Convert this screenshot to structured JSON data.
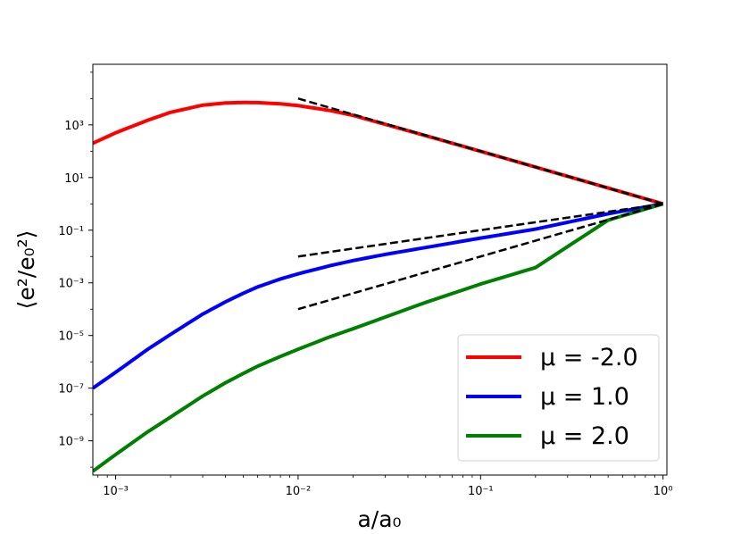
{
  "chart_data": {
    "type": "line",
    "title": "",
    "xlabel": "a/a₀",
    "ylabel": "⟨e²/e₀²⟩",
    "xscale": "log",
    "yscale": "log",
    "xlim": [
      0.00075,
      1.05
    ],
    "ylim": [
      5e-11,
      200000.0
    ],
    "grid": false,
    "legend_position": "lower right",
    "x_ticks": [
      {
        "value": 0.001,
        "label": "10⁻³"
      },
      {
        "value": 0.01,
        "label": "10⁻²"
      },
      {
        "value": 0.1,
        "label": "10⁻¹"
      },
      {
        "value": 1,
        "label": "10⁰"
      }
    ],
    "y_ticks": [
      {
        "value": 1e-09,
        "label": "10⁻⁹"
      },
      {
        "value": 1e-07,
        "label": "10⁻⁷"
      },
      {
        "value": 1e-05,
        "label": "10⁻⁵"
      },
      {
        "value": 0.001,
        "label": "10⁻³"
      },
      {
        "value": 0.1,
        "label": "10⁻¹"
      },
      {
        "value": 10,
        "label": "10¹"
      },
      {
        "value": 1000,
        "label": "10³"
      }
    ],
    "series": [
      {
        "name": "μ = -2.0",
        "color": "#ff0000",
        "style": "solid",
        "x": [
          0.00075,
          0.001,
          0.0015,
          0.002,
          0.003,
          0.004,
          0.005,
          0.006,
          0.008,
          0.01,
          0.015,
          0.02,
          0.03,
          0.05,
          0.1,
          0.2,
          0.5,
          1.0
        ],
        "y": [
          200,
          500,
          1500,
          3000,
          5600,
          6800,
          7100,
          7000,
          6300,
          5400,
          3500,
          2300,
          1050,
          390,
          99,
          25,
          4,
          1
        ]
      },
      {
        "name": "μ = 1.0",
        "color": "#0000ff",
        "style": "solid",
        "x": [
          0.00075,
          0.001,
          0.0015,
          0.002,
          0.003,
          0.004,
          0.005,
          0.006,
          0.008,
          0.01,
          0.015,
          0.02,
          0.03,
          0.05,
          0.1,
          0.2,
          0.5,
          1.0
        ],
        "y": [
          1e-07,
          4e-07,
          3e-06,
          1.1e-05,
          6.5e-05,
          0.00019,
          0.0004,
          0.0007,
          0.0014,
          0.0022,
          0.0045,
          0.007,
          0.012,
          0.022,
          0.05,
          0.11,
          0.42,
          1
        ]
      },
      {
        "name": "μ = 2.0",
        "color": "#008000",
        "style": "solid",
        "x": [
          0.00075,
          0.001,
          0.0015,
          0.002,
          0.003,
          0.004,
          0.005,
          0.006,
          0.008,
          0.01,
          0.015,
          0.02,
          0.03,
          0.05,
          0.1,
          0.2,
          0.5,
          1.0
        ],
        "y": [
          7e-11,
          3e-10,
          2.2e-09,
          8e-09,
          5e-08,
          1.6e-07,
          3.6e-07,
          6.8e-07,
          1.6e-06,
          3e-06,
          9e-06,
          1.8e-05,
          5e-05,
          0.00018,
          0.0009,
          0.0038,
          0.24,
          1
        ]
      },
      {
        "color": "#000000",
        "style": "dashed",
        "x": [
          0.01,
          1.0
        ],
        "y": [
          10000,
          1
        ]
      },
      {
        "color": "#000000",
        "style": "dashed",
        "x": [
          0.01,
          1.0
        ],
        "y": [
          0.01,
          1
        ]
      },
      {
        "color": "#000000",
        "style": "dashed",
        "x": [
          0.01,
          1.0
        ],
        "y": [
          0.0001,
          1
        ]
      }
    ],
    "legend": [
      {
        "label": "μ = -2.0",
        "color": "#ff0000"
      },
      {
        "label": "μ = 1.0",
        "color": "#0000ff"
      },
      {
        "label": "μ = 2.0",
        "color": "#008000"
      }
    ]
  }
}
